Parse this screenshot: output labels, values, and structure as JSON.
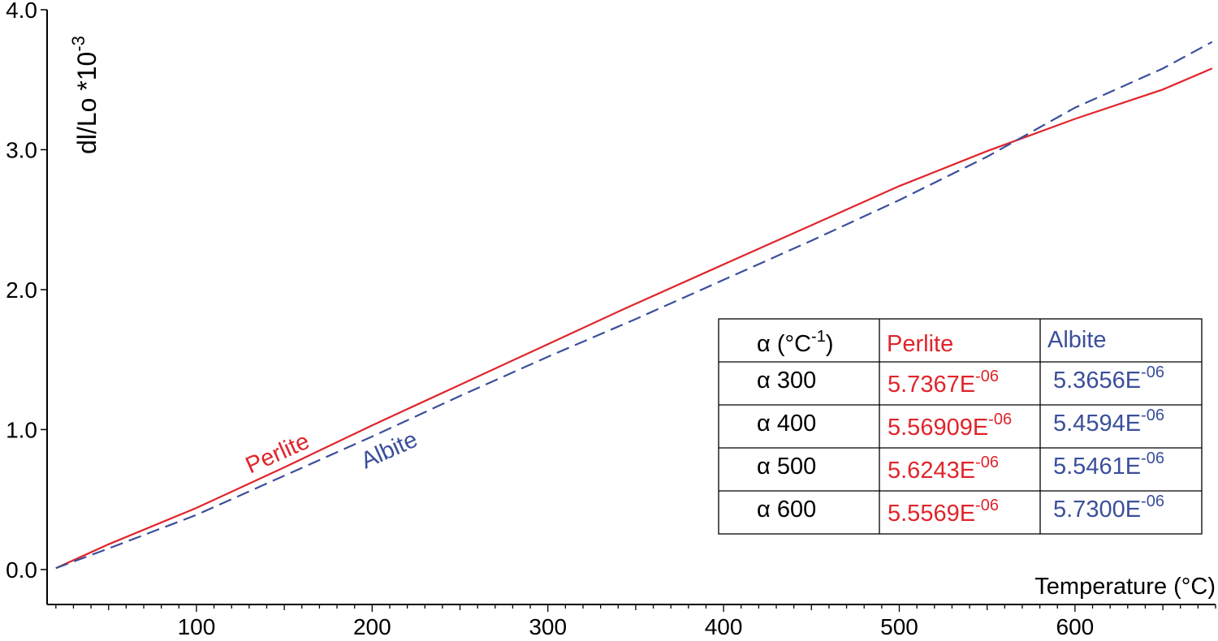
{
  "chart_data": {
    "type": "line",
    "xlabel": "Temperature (°C)",
    "ylabel": "dl/Lo *10",
    "ylabel_exponent": "-3",
    "xlim": [
      15,
      680
    ],
    "ylim": [
      -0.25,
      4.0
    ],
    "x_ticks": [
      100,
      200,
      300,
      400,
      500,
      600
    ],
    "y_ticks": [
      0.0,
      1.0,
      2.0,
      3.0,
      4.0
    ],
    "x_tick_labels": [
      "100",
      "200",
      "300",
      "400",
      "500",
      "600"
    ],
    "y_tick_labels": [
      "0.0",
      "1.0",
      "2.0",
      "3.0",
      "4.0"
    ],
    "grid": false,
    "series": [
      {
        "name": "Perlite",
        "color": "#e0242b",
        "style": "solid",
        "x": [
          20,
          50,
          100,
          150,
          200,
          250,
          300,
          343,
          400,
          450,
          500,
          550,
          600,
          650,
          678
        ],
        "y": [
          0.01,
          0.18,
          0.44,
          0.73,
          1.03,
          1.32,
          1.61,
          1.86,
          2.18,
          2.46,
          2.74,
          2.99,
          3.22,
          3.43,
          3.58
        ]
      },
      {
        "name": "Albite",
        "color": "#3b4f9b",
        "style": "dashed",
        "x": [
          20,
          50,
          100,
          150,
          200,
          250,
          300,
          350,
          400,
          450,
          500,
          550,
          600,
          650,
          678
        ],
        "y": [
          0.01,
          0.15,
          0.39,
          0.67,
          0.95,
          1.24,
          1.52,
          1.79,
          2.07,
          2.35,
          2.64,
          2.95,
          3.3,
          3.58,
          3.77
        ]
      }
    ],
    "series_labels": [
      {
        "text": "Perlite",
        "color": "#e0242b"
      },
      {
        "text": "Albite",
        "color": "#3b4f9b"
      }
    ],
    "table": {
      "header": [
        {
          "main": "α (°C",
          "sup": "-1",
          "tail": ")",
          "color": "#000000"
        },
        {
          "main": "Perlite",
          "sup": "",
          "tail": "",
          "color": "#e0242b"
        },
        {
          "main": "Albite",
          "sup": "",
          "tail": "",
          "color": "#3b4f9b"
        }
      ],
      "rows": [
        {
          "label": "α 300",
          "perlite": "5.7367E",
          "albite": "5.3656E",
          "exp": "-06"
        },
        {
          "label": "α 400",
          "perlite": "5.56909E",
          "albite": "5.4594E",
          "exp": "-06"
        },
        {
          "label": "α 500",
          "perlite": "5.6243E",
          "albite": "5.5461E",
          "exp": "-06"
        },
        {
          "label": "α 600",
          "perlite": "5.5569E",
          "albite": "5.7300E",
          "exp": "-06"
        }
      ]
    }
  }
}
